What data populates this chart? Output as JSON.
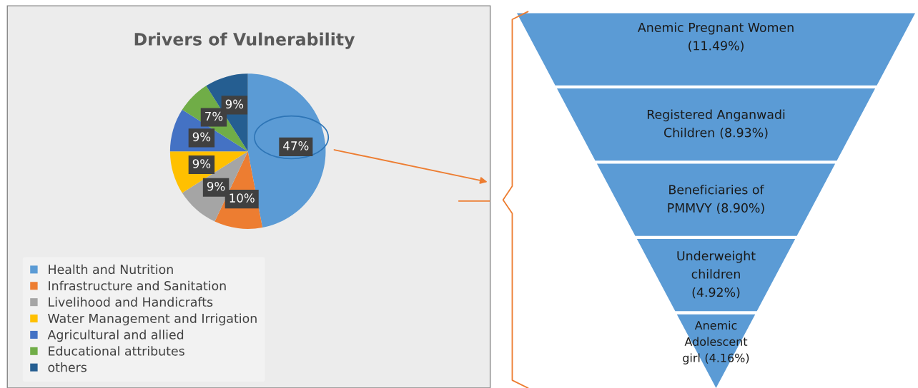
{
  "chart_data": [
    {
      "type": "pie",
      "title": "Drivers of Vulnerability",
      "categories": [
        "Health and Nutrition",
        "Infrastructure and Sanitation",
        "Livelihood and Handicrafts",
        "Water Management and Irrigation",
        "Agricultural and allied",
        "Educational attributes",
        "others"
      ],
      "values": [
        47,
        10,
        9,
        9,
        9,
        7,
        9
      ],
      "colors": [
        "#5b9bd5",
        "#ed7d31",
        "#a5a5a5",
        "#ffc000",
        "#4472c4",
        "#70ad47",
        "#255e91"
      ],
      "value_labels": [
        "47%",
        "10%",
        "9%",
        "9%",
        "9%",
        "7%",
        "9%"
      ],
      "legend": "bottom"
    },
    {
      "type": "other",
      "categories": [
        "Anemic Pregnant Women",
        "Registered Anganwadi\nChildren",
        "Beneficiaries of\nPMMVY",
        "Underweight\nchildren",
        "Anemic\nAdolescent\ngirl"
      ],
      "values": [
        11.49,
        8.93,
        8.9,
        4.92,
        4.16
      ],
      "value_labels": [
        "(11.49%)",
        "(8.93%)",
        "(8.90%)",
        "(4.92%)",
        "(4.16%)"
      ],
      "color": "#5b9bd5"
    }
  ]
}
